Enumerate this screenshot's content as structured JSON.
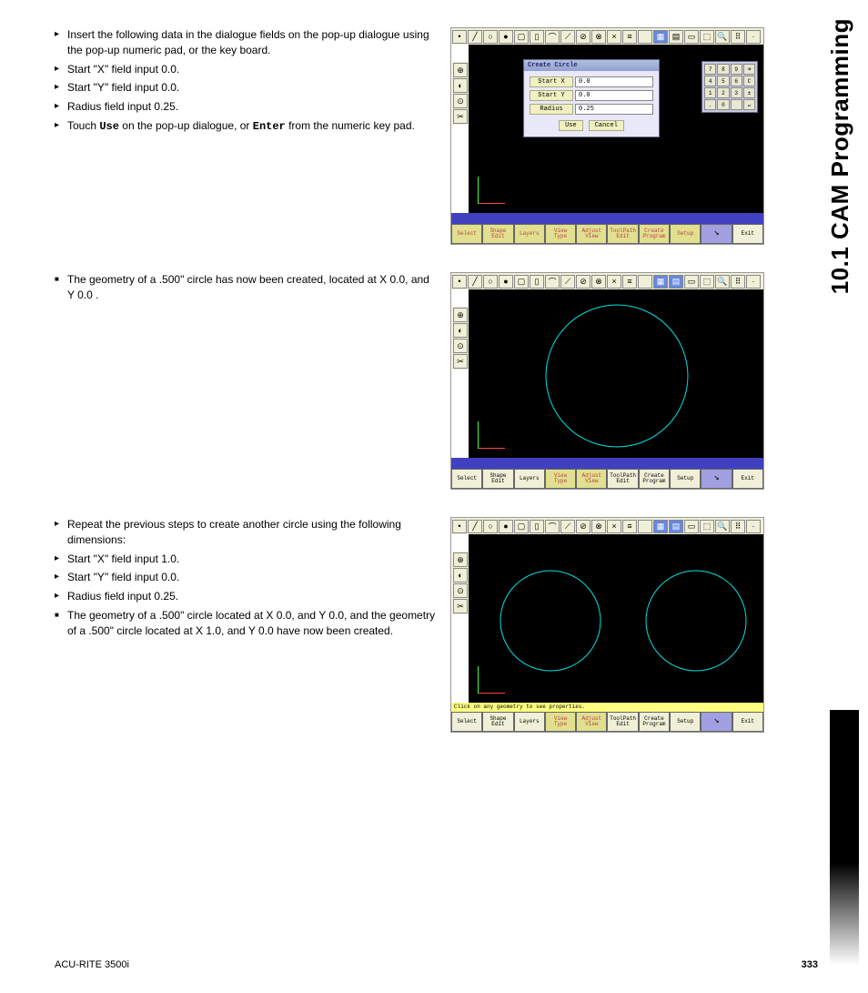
{
  "sideTitle": "10.1 CAM Programming",
  "footer": "ACU-RITE 3500i",
  "pageNum": "333",
  "section1": {
    "items": [
      {
        "type": "arrow",
        "text": "Insert the following data in the dialogue fields on the pop-up dialogue  using the pop-up numeric pad, or the key board."
      },
      {
        "type": "arrow",
        "text": "Start \"X\" field input 0.0."
      },
      {
        "type": "arrow",
        "text": "Start \"Y\" field input 0.0."
      },
      {
        "type": "arrow",
        "text": "Radius field input 0.25."
      },
      {
        "type": "arrow",
        "html": "Touch <b>Use</b> on the pop-up dialogue, or <b>Enter</b> from the numeric key pad."
      }
    ]
  },
  "section2": {
    "items": [
      {
        "type": "square",
        "text": "The geometry of a .500\" circle has now been created, located at X 0.0, and Y 0.0 ."
      }
    ]
  },
  "section3": {
    "items": [
      {
        "type": "arrow",
        "text": "Repeat the previous steps to create another circle using the following dimensions:"
      },
      {
        "type": "arrow",
        "text": "Start \"X\" field input 1.0."
      },
      {
        "type": "arrow",
        "text": "Start \"Y\" field input 0.0."
      },
      {
        "type": "arrow",
        "text": "Radius field input 0.25."
      },
      {
        "type": "square",
        "text": "The geometry of a .500\" circle located at X 0.0, and Y 0.0, and the geometry of a .500\" circle located at X 1.0, and Y 0.0 have now been created."
      }
    ]
  },
  "dialog": {
    "title": "Create Circle",
    "rows": [
      {
        "lbl": "Start X",
        "val": "0.0"
      },
      {
        "lbl": "Start Y",
        "val": "0.0"
      },
      {
        "lbl": "Radius",
        "val": "0.25"
      }
    ],
    "use": "Use",
    "cancel": "Cancel"
  },
  "keypad": [
    "7",
    "8",
    "9",
    "⌫",
    "4",
    "5",
    "6",
    "C",
    "1",
    "2",
    "3",
    "±",
    ".",
    "0",
    "",
    "↵"
  ],
  "toolbarIcons": [
    "•",
    "╱",
    "○",
    "●",
    "▢",
    "▯",
    "⌒",
    "⟋",
    "⊘",
    "⊗",
    "×",
    "≡",
    "",
    "▦",
    "▤",
    "▭",
    "⬚",
    "🔍",
    "⠿",
    "·"
  ],
  "sidebarIcons": [
    "⊕",
    "◐",
    "⊙",
    "✂"
  ],
  "bottomBtns": [
    {
      "l1": "Select",
      "l2": ""
    },
    {
      "l1": "Shape",
      "l2": "Edit"
    },
    {
      "l1": "Layers",
      "l2": ""
    },
    {
      "l1": "View",
      "l2": "Type"
    },
    {
      "l1": "Adjust",
      "l2": "View"
    },
    {
      "l1": "ToolPath",
      "l2": "Edit"
    },
    {
      "l1": "Create",
      "l2": "Program"
    },
    {
      "l1": "Setup",
      "l2": ""
    },
    {
      "l1": "",
      "l2": ""
    },
    {
      "l1": "Exit",
      "l2": ""
    }
  ],
  "hintText": "Click on any geometry to see properties.",
  "colors": {
    "circleStroke": "#00e0e0",
    "canvasBg": "#000000"
  }
}
